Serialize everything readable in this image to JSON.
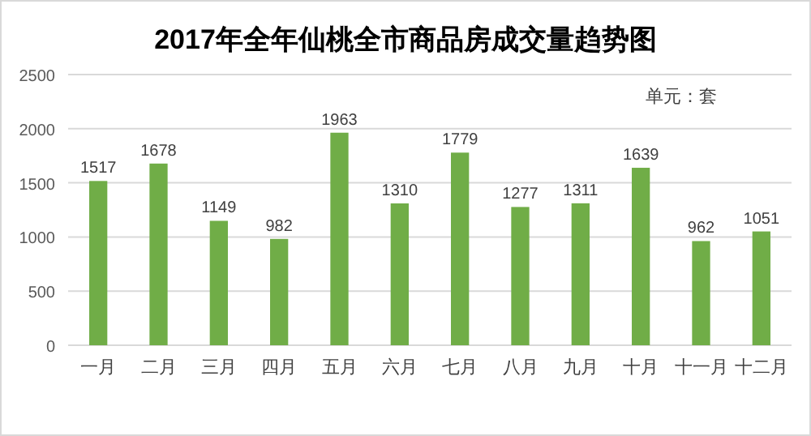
{
  "chart_data": {
    "type": "bar",
    "title": "2017年全年仙桃全市商品房成交量趋势图",
    "annotations": [
      "单元：套"
    ],
    "categories": [
      "一月",
      "二月",
      "三月",
      "四月",
      "五月",
      "六月",
      "七月",
      "八月",
      "九月",
      "十月",
      "十一月",
      "十二月"
    ],
    "values": [
      1517,
      1678,
      1149,
      982,
      1963,
      1310,
      1779,
      1277,
      1311,
      1639,
      962,
      1051
    ],
    "color": "#70ad47",
    "ylim": [
      0,
      2500
    ],
    "yticks": [
      0,
      500,
      1000,
      1500,
      2000,
      2500
    ],
    "grid": "y",
    "data_labels": true
  }
}
